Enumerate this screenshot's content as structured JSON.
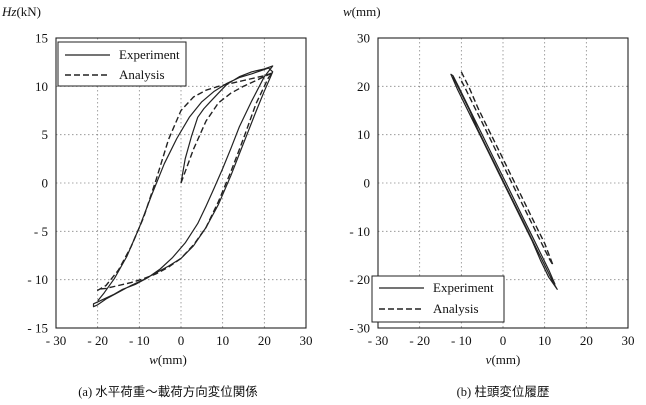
{
  "chart_data": [
    {
      "type": "line",
      "ylabel_italic": "Hz",
      "ylabel_unit": "(kN)",
      "xlabel_italic": "w",
      "xlabel_unit": "(mm)",
      "xlim": [
        -30,
        30
      ],
      "ylim": [
        -15,
        15
      ],
      "xticks": [
        -30,
        -20,
        -10,
        0,
        10,
        20,
        30
      ],
      "yticks": [
        -15,
        -10,
        -5,
        0,
        5,
        10,
        15
      ],
      "xtick_labels": [
        "- 30",
        "- 20",
        "- 10",
        "0",
        "10",
        "20",
        "30"
      ],
      "ytick_labels": [
        "- 15",
        "- 10",
        "- 5",
        "0",
        "5",
        "10",
        "15"
      ],
      "grid": true,
      "legend_position": "top-left",
      "caption": "(a) 水平荷重〜載荷方向変位関係",
      "series": [
        {
          "name": "Experiment",
          "style": "solid",
          "color": "#222222",
          "x": [
            0,
            1,
            2.5,
            4,
            5.5,
            7,
            9,
            11,
            14,
            17,
            20,
            22,
            20,
            17,
            14,
            12,
            10,
            8,
            6,
            4,
            1,
            -2,
            -5,
            -8,
            -11,
            -14,
            -16,
            -18,
            -19.5,
            -21,
            -21,
            -20,
            -18,
            -15,
            -12,
            -9,
            -6,
            -3,
            0,
            3,
            6,
            9,
            12,
            14,
            16,
            18,
            20,
            21.5,
            22,
            21,
            19,
            17,
            14,
            11,
            8,
            5,
            2,
            -1,
            -4,
            -7,
            -10,
            -13,
            -16,
            -18.5,
            -20
          ],
          "y": [
            0,
            2.5,
            4.8,
            6.8,
            7.7,
            8.4,
            9.3,
            10.2,
            11.0,
            11.5,
            11.8,
            12.1,
            11.0,
            8.5,
            5.8,
            3.6,
            1.5,
            -0.5,
            -2.4,
            -4.2,
            -6.2,
            -7.7,
            -8.9,
            -9.8,
            -10.5,
            -11.0,
            -11.5,
            -11.9,
            -12.2,
            -12.5,
            -12.8,
            -12.6,
            -12.0,
            -11.3,
            -10.6,
            -10.0,
            -9.3,
            -8.6,
            -7.8,
            -6.5,
            -4.6,
            -2.2,
            0.8,
            3.0,
            5.2,
            7.4,
            9.5,
            11.0,
            11.5,
            11.9,
            11.6,
            11.3,
            10.9,
            10.3,
            9.5,
            8.4,
            6.8,
            4.6,
            2.0,
            -1.2,
            -4.6,
            -7.6,
            -9.9,
            -11.4,
            -12.2
          ]
        },
        {
          "name": "Analysis",
          "style": "dashed",
          "color": "#222222",
          "x": [
            0,
            3,
            6,
            9,
            12,
            15,
            18,
            21,
            22,
            21,
            18,
            15,
            12,
            9,
            6,
            3,
            0,
            -3,
            -6,
            -9,
            -12,
            -15,
            -18,
            -20,
            -20,
            -18,
            -15,
            -12,
            -9,
            -6,
            -3,
            0,
            3,
            6,
            9,
            12,
            15,
            18,
            20,
            22
          ],
          "y": [
            0,
            3.5,
            6.4,
            8.3,
            9.3,
            10.0,
            10.6,
            11.2,
            11.4,
            10.9,
            8.2,
            4.6,
            1.2,
            -1.9,
            -4.6,
            -6.4,
            -7.8,
            -8.7,
            -9.4,
            -9.9,
            -10.3,
            -10.6,
            -10.9,
            -11.0,
            -11.1,
            -10.6,
            -9.0,
            -6.6,
            -3.6,
            0.3,
            4.5,
            7.5,
            8.9,
            9.6,
            10.0,
            10.3,
            10.6,
            10.9,
            11.1,
            11.4
          ]
        }
      ]
    },
    {
      "type": "line",
      "ylabel_italic": "w",
      "ylabel_unit": "(mm)",
      "xlabel_italic": "v",
      "xlabel_unit": "(mm)",
      "xlim": [
        -30,
        30
      ],
      "ylim": [
        -30,
        30
      ],
      "xticks": [
        -30,
        -20,
        -10,
        0,
        10,
        20,
        30
      ],
      "yticks": [
        -30,
        -20,
        -10,
        0,
        10,
        20,
        30
      ],
      "xtick_labels": [
        "- 30",
        "- 20",
        "- 10",
        "0",
        "10",
        "20",
        "30"
      ],
      "ytick_labels": [
        "- 30",
        "- 20",
        "- 10",
        "0",
        "10",
        "20",
        "30"
      ],
      "grid": true,
      "legend_position": "bottom-left",
      "caption": "(b) 柱頭変位履歴",
      "series": [
        {
          "name": "Experiment",
          "style": "solid",
          "color": "#222222",
          "x": [
            -12,
            -10,
            -8,
            -6,
            -4,
            -2,
            0,
            2,
            4,
            6,
            8,
            10,
            12,
            13,
            11,
            9,
            7,
            5,
            3,
            1,
            -1,
            -3,
            -5,
            -7,
            -9,
            -11,
            -12.5,
            -12,
            -11,
            -9,
            -7,
            -5,
            -3,
            -1,
            1,
            3,
            5,
            7,
            9,
            11,
            12.5
          ],
          "y": [
            22,
            18.5,
            15,
            11,
            7.5,
            4,
            0.5,
            -3,
            -6.5,
            -10,
            -13.5,
            -17,
            -20.5,
            -22,
            -19.5,
            -16,
            -12,
            -8.5,
            -5,
            -1.5,
            2,
            5.5,
            9,
            12.5,
            16,
            19.5,
            22.5,
            22.2,
            20.5,
            17,
            13.5,
            10,
            6.5,
            3,
            -0.5,
            -4,
            -7.5,
            -11,
            -14.5,
            -18,
            -21
          ]
        },
        {
          "name": "Analysis",
          "style": "dashed",
          "color": "#222222",
          "x": [
            -10,
            -8,
            -6,
            -4,
            -2,
            0,
            2,
            4,
            6,
            8,
            10,
            12,
            11,
            9,
            7,
            5,
            3,
            1,
            -1,
            -3,
            -5,
            -7,
            -9,
            -10.5
          ],
          "y": [
            23,
            19.5,
            15.5,
            12,
            8.5,
            5,
            1.5,
            -2,
            -5.5,
            -9,
            -12.5,
            -17,
            -15.5,
            -12,
            -8.5,
            -5,
            -1.5,
            2,
            5.5,
            9,
            12.5,
            16,
            19.5,
            22
          ]
        }
      ]
    }
  ]
}
